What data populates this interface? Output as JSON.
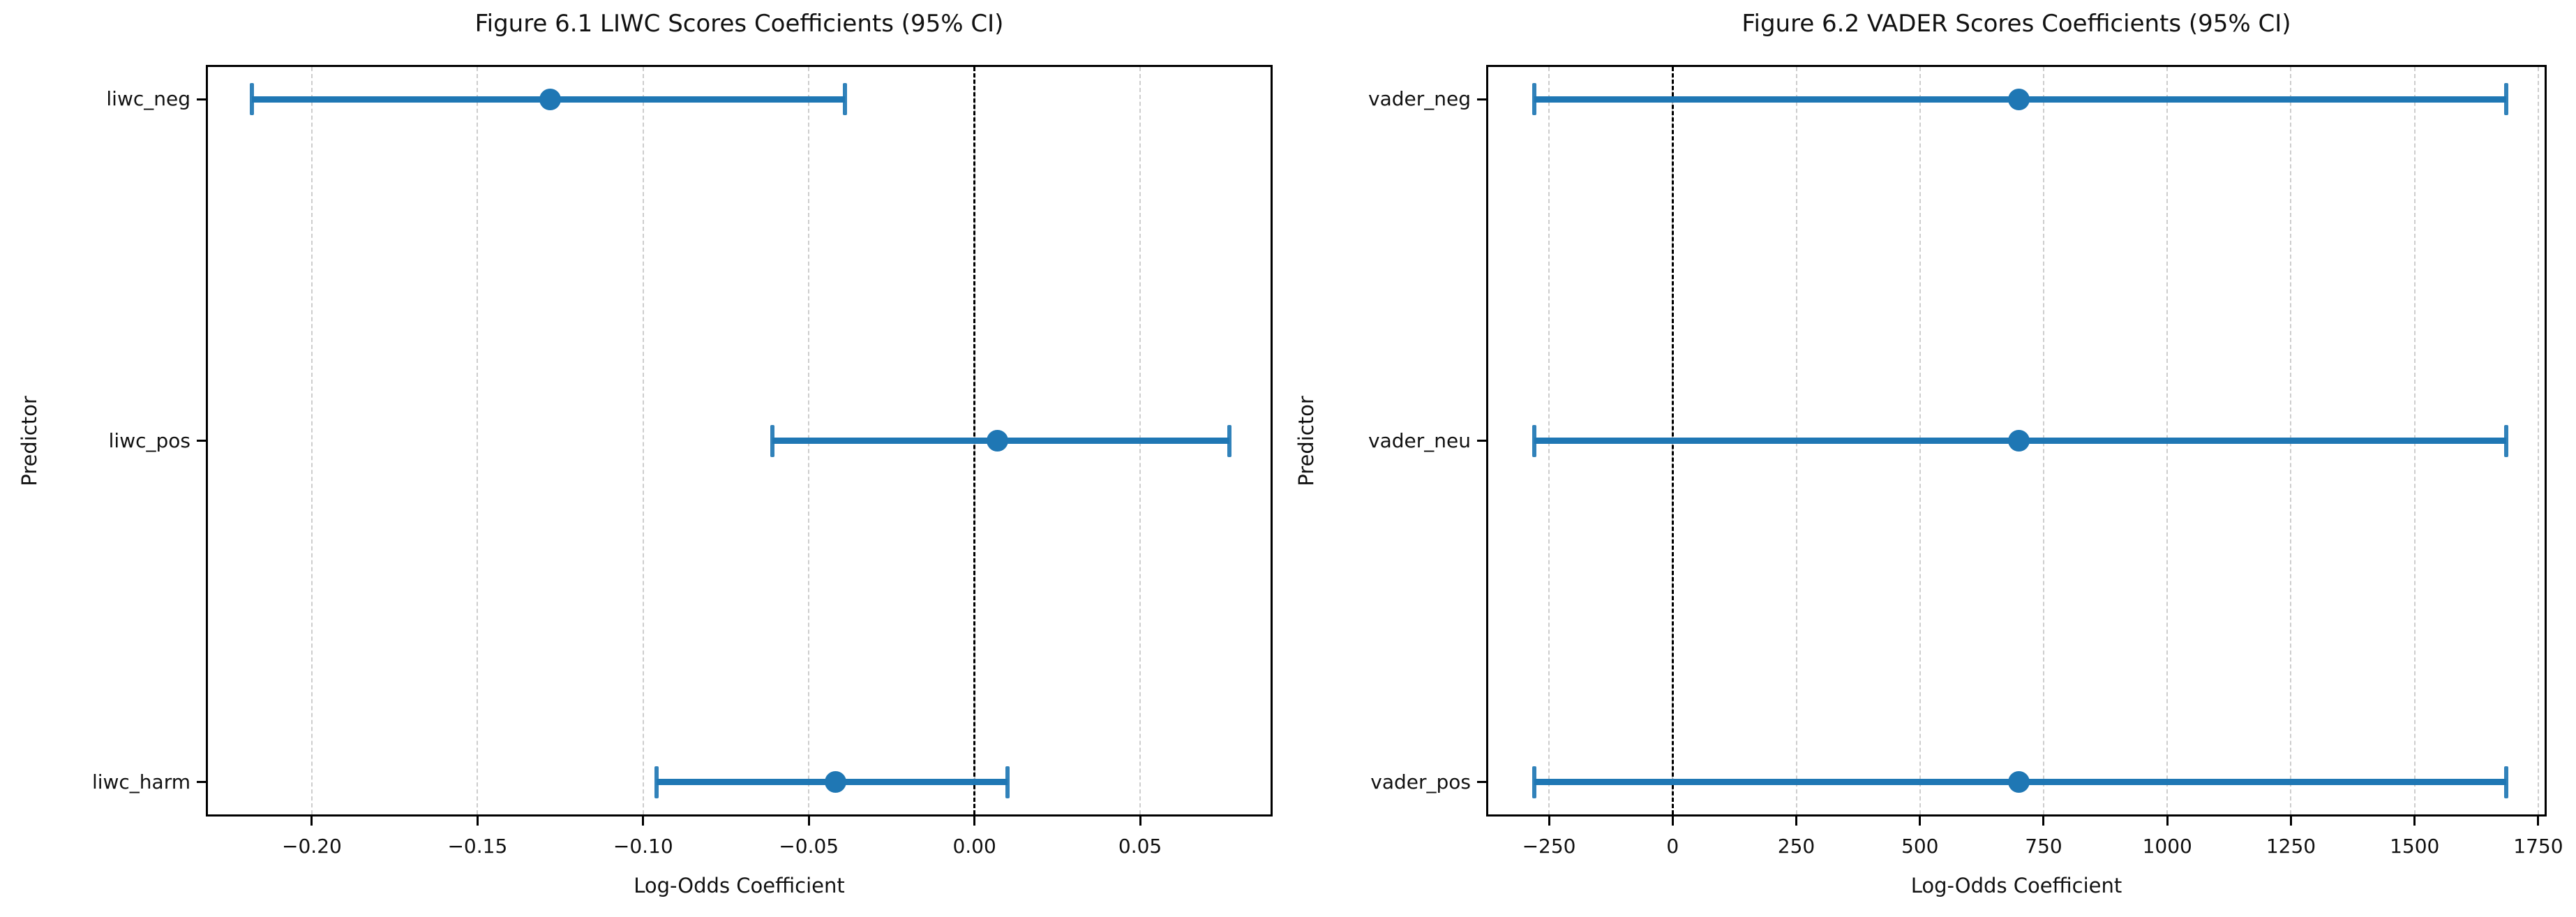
{
  "figure": {
    "colors": {
      "background": "#ffffff",
      "accent": "#1f77b4",
      "spine": "#000000",
      "zero_line": "#000000",
      "grid": "#cdcdcd",
      "text": "#111111"
    }
  },
  "chart_data": [
    {
      "type": "scatter",
      "subtype": "horizontal-errorbar-forest-plot",
      "title": "Figure 6.1 LIWC Scores Coefficients (95% CI)",
      "xlabel": "Log-Odds Coefficient",
      "ylabel": "Predictor",
      "categories": [
        "liwc_neg",
        "liwc_pos",
        "liwc_harm"
      ],
      "series": [
        {
          "name": "coefficient",
          "values": [
            -0.128,
            0.007,
            -0.042
          ]
        }
      ],
      "ci_low": [
        -0.218,
        -0.061,
        -0.096
      ],
      "ci_high": [
        -0.039,
        0.077,
        0.01
      ],
      "xlim": [
        -0.232,
        0.09
      ],
      "xticks": [
        -0.2,
        -0.15,
        -0.1,
        -0.05,
        0.0,
        0.05
      ],
      "xtick_labels": [
        "−0.20",
        "−0.15",
        "−0.10",
        "−0.05",
        "0.00",
        "0.05"
      ],
      "zero_reference_line": 0,
      "grid": "vertical dashed",
      "legend": "none"
    },
    {
      "type": "scatter",
      "subtype": "horizontal-errorbar-forest-plot",
      "title": "Figure 6.2 VADER Scores Coefficients (95% CI)",
      "xlabel": "Log-Odds Coefficient",
      "ylabel": "Predictor",
      "categories": [
        "vader_neg",
        "vader_neu",
        "vader_pos"
      ],
      "series": [
        {
          "name": "coefficient",
          "values": [
            700,
            700,
            700
          ]
        }
      ],
      "ci_low": [
        -280,
        -280,
        -280
      ],
      "ci_high": [
        1685,
        1685,
        1685
      ],
      "xlim": [
        -377,
        1767
      ],
      "xticks": [
        -250,
        0,
        250,
        500,
        750,
        1000,
        1250,
        1500,
        1750
      ],
      "xtick_labels": [
        "−250",
        "0",
        "250",
        "500",
        "750",
        "1000",
        "1250",
        "1500",
        "1750"
      ],
      "zero_reference_line": 0,
      "grid": "vertical dashed",
      "legend": "none"
    }
  ]
}
